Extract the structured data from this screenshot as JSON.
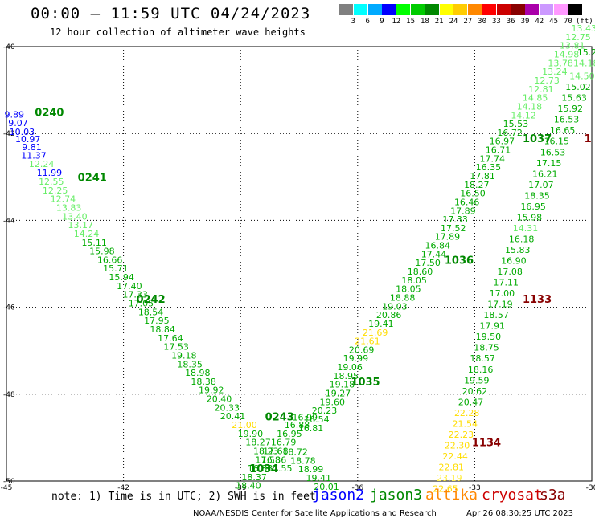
{
  "header": {
    "title": "00:00 – 11:59 UTC 04/24/2023",
    "subtitle": "12 hour collection of altimeter wave heights"
  },
  "color_scale": {
    "labels": [
      "3",
      "6",
      "9",
      "12",
      "15",
      "18",
      "21",
      "24",
      "27",
      "30",
      "33",
      "36",
      "39",
      "42",
      "45",
      "70"
    ],
    "unit": "(ft)",
    "colors": [
      "#808080",
      "#00ffff",
      "#00aaff",
      "#0000ff",
      "#00ff00",
      "#00cc00",
      "#008800",
      "#ffff00",
      "#ffcc00",
      "#ff8800",
      "#ff0000",
      "#cc0000",
      "#880000",
      "#aa00aa",
      "#cc99ff",
      "#ff99ff",
      "#000000"
    ]
  },
  "footer": {
    "note": "note:  1) Time is in UTC; 2) SWH is in feet",
    "satellites": [
      {
        "name": "jason2",
        "color": "#0000ff"
      },
      {
        "name": "jason3",
        "color": "#008800"
      },
      {
        "name": "altika",
        "color": "#ff8800"
      },
      {
        "name": "cryosat",
        "color": "#cc0000"
      },
      {
        "name": "s3a",
        "color": "#880000"
      }
    ],
    "credit": "NOAA/NESDIS Center for Satellite Applications and Research",
    "timestamp": "Apr 26 08:30:25 UTC 2023"
  },
  "chart_data": {
    "type": "scatter",
    "x_ticks": [
      "-45",
      "-42",
      "-39",
      "-36",
      "-33",
      "-30"
    ],
    "y_ticks": [
      "-40",
      "-42",
      "-44",
      "-46",
      "-48",
      "-50"
    ],
    "xlim": [
      -45,
      -30
    ],
    "ylim": [
      -50,
      -40
    ],
    "grid": true,
    "track_labels": [
      {
        "text": "0240",
        "x": -43.9,
        "y": -41.6,
        "color": "#008800"
      },
      {
        "text": "0241",
        "x": -42.8,
        "y": -43.1,
        "color": "#008800"
      },
      {
        "text": "0242",
        "x": -41.3,
        "y": -45.9,
        "color": "#008800"
      },
      {
        "text": "0243",
        "x": -38.0,
        "y": -48.6,
        "color": "#008800"
      },
      {
        "text": "1034",
        "x": -38.4,
        "y": -49.8,
        "color": "#008800"
      },
      {
        "text": "1035",
        "x": -35.8,
        "y": -47.8,
        "color": "#008800"
      },
      {
        "text": "1036",
        "x": -33.4,
        "y": -45.0,
        "color": "#008800"
      },
      {
        "text": "1037",
        "x": -31.4,
        "y": -42.2,
        "color": "#008800"
      },
      {
        "text": "1133",
        "x": -31.4,
        "y": -45.9,
        "color": "#880000"
      },
      {
        "text": "1134",
        "x": -32.7,
        "y": -49.2,
        "color": "#880000"
      },
      {
        "text": "1",
        "x": -30.1,
        "y": -42.2,
        "color": "#880000"
      }
    ],
    "series": [
      {
        "name": "0240-0241-0242",
        "points": [
          {
            "x": -44.8,
            "y": -41.64,
            "v": "9.89"
          },
          {
            "x": -44.7,
            "y": -41.83,
            "v": "9.07"
          },
          {
            "x": -44.6,
            "y": -42.03,
            "v": "10.03"
          },
          {
            "x": -44.45,
            "y": -42.2,
            "v": "10.97"
          },
          {
            "x": -44.35,
            "y": -42.38,
            "v": "9.81"
          },
          {
            "x": -44.3,
            "y": -42.58,
            "v": "11.37"
          },
          {
            "x": -44.1,
            "y": -42.77,
            "v": "12.24"
          },
          {
            "x": -43.9,
            "y": -42.98,
            "v": "11.99"
          },
          {
            "x": -43.85,
            "y": -43.18,
            "v": "12.55"
          },
          {
            "x": -43.75,
            "y": -43.38,
            "v": "12.25"
          },
          {
            "x": -43.55,
            "y": -43.58,
            "v": "12.74"
          },
          {
            "x": -43.4,
            "y": -43.78,
            "v": "13.83"
          },
          {
            "x": -43.25,
            "y": -43.98,
            "v": "13.40"
          },
          {
            "x": -43.1,
            "y": -44.18,
            "v": "13.17"
          },
          {
            "x": -42.95,
            "y": -44.38,
            "v": "14.24"
          },
          {
            "x": -42.75,
            "y": -44.58,
            "v": "15.11"
          },
          {
            "x": -42.55,
            "y": -44.78,
            "v": "15.98"
          },
          {
            "x": -42.35,
            "y": -44.98,
            "v": "16.66"
          },
          {
            "x": -42.2,
            "y": -45.18,
            "v": "15.71"
          },
          {
            "x": -42.05,
            "y": -45.38,
            "v": "15.94"
          },
          {
            "x": -41.85,
            "y": -45.58,
            "v": "17.40"
          },
          {
            "x": -41.7,
            "y": -45.78,
            "v": "17.33"
          },
          {
            "x": -41.55,
            "y": -45.98,
            "v": "17.05"
          },
          {
            "x": -41.3,
            "y": -46.18,
            "v": "18.54"
          },
          {
            "x": -41.15,
            "y": -46.38,
            "v": "17.95"
          },
          {
            "x": -41.0,
            "y": -46.58,
            "v": "18.84"
          },
          {
            "x": -40.8,
            "y": -46.78,
            "v": "17.64"
          },
          {
            "x": -40.65,
            "y": -46.98,
            "v": "17.53"
          },
          {
            "x": -40.45,
            "y": -47.18,
            "v": "19.18"
          },
          {
            "x": -40.3,
            "y": -47.38,
            "v": "18.35"
          },
          {
            "x": -40.1,
            "y": -47.58,
            "v": "18.98"
          },
          {
            "x": -39.95,
            "y": -47.78,
            "v": "18.38"
          },
          {
            "x": -39.75,
            "y": -47.98,
            "v": "19.92"
          },
          {
            "x": -39.55,
            "y": -48.18,
            "v": "20.40"
          },
          {
            "x": -39.35,
            "y": -48.38,
            "v": "20.33"
          },
          {
            "x": -39.2,
            "y": -48.58,
            "v": "20.41"
          },
          {
            "x": -38.9,
            "y": -48.78,
            "v": "21.00"
          },
          {
            "x": -38.75,
            "y": -48.98,
            "v": "19.90"
          },
          {
            "x": -38.55,
            "y": -49.18,
            "v": "18.27"
          },
          {
            "x": -38.35,
            "y": -49.38,
            "v": "18.23"
          },
          {
            "x": -38.15,
            "y": -49.58,
            "v": "16.36"
          },
          {
            "x": -38.0,
            "y": -49.78,
            "v": "17.55"
          }
        ]
      },
      {
        "name": "0243-1034",
        "points": [
          {
            "x": -37.35,
            "y": -48.6,
            "v": "16.99"
          },
          {
            "x": -37.55,
            "y": -48.78,
            "v": "16.88"
          },
          {
            "x": -37.75,
            "y": -48.98,
            "v": "16.95"
          },
          {
            "x": -37.9,
            "y": -49.18,
            "v": "16.79"
          },
          {
            "x": -38.1,
            "y": -49.38,
            "v": "17.68"
          },
          {
            "x": -38.3,
            "y": -49.58,
            "v": "17.58"
          },
          {
            "x": -38.5,
            "y": -49.78,
            "v": "16.88"
          },
          {
            "x": -38.65,
            "y": -49.98,
            "v": "18.37"
          },
          {
            "x": -38.8,
            "y": -50.18,
            "v": "18.40"
          },
          {
            "x": -37.6,
            "y": -49.4,
            "v": "18.72"
          },
          {
            "x": -37.4,
            "y": -49.6,
            "v": "18.78"
          },
          {
            "x": -37.2,
            "y": -49.8,
            "v": "18.99"
          },
          {
            "x": -37.0,
            "y": -50.0,
            "v": "19.41"
          },
          {
            "x": -36.8,
            "y": -50.2,
            "v": "20.01"
          }
        ]
      },
      {
        "name": "1035-1036",
        "points": [
          {
            "x": -37.2,
            "y": -48.85,
            "v": "16.81"
          },
          {
            "x": -37.05,
            "y": -48.65,
            "v": "16.54"
          },
          {
            "x": -36.85,
            "y": -48.45,
            "v": "20.23"
          },
          {
            "x": -36.65,
            "y": -48.25,
            "v": "19.60"
          },
          {
            "x": -36.5,
            "y": -48.05,
            "v": "19.27"
          },
          {
            "x": -36.4,
            "y": -47.85,
            "v": "19.18"
          },
          {
            "x": -36.3,
            "y": -47.65,
            "v": "18.95"
          },
          {
            "x": -36.2,
            "y": -47.45,
            "v": "19.06"
          },
          {
            "x": -36.05,
            "y": -47.25,
            "v": "19.99"
          },
          {
            "x": -35.9,
            "y": -47.05,
            "v": "20.69"
          },
          {
            "x": -35.75,
            "y": -46.85,
            "v": "21.61"
          },
          {
            "x": -35.55,
            "y": -46.65,
            "v": "21.69"
          },
          {
            "x": -35.4,
            "y": -46.45,
            "v": "19.41"
          },
          {
            "x": -35.2,
            "y": -46.25,
            "v": "20.86"
          },
          {
            "x": -35.05,
            "y": -46.05,
            "v": "19.03"
          },
          {
            "x": -34.85,
            "y": -45.85,
            "v": "18.88"
          },
          {
            "x": -34.7,
            "y": -45.65,
            "v": "18.05"
          },
          {
            "x": -34.55,
            "y": -45.45,
            "v": "18.05"
          },
          {
            "x": -34.4,
            "y": -45.25,
            "v": "18.60"
          },
          {
            "x": -34.2,
            "y": -45.05,
            "v": "17.50"
          },
          {
            "x": -34.05,
            "y": -44.85,
            "v": "17.44"
          },
          {
            "x": -33.95,
            "y": -44.65,
            "v": "16.84"
          },
          {
            "x": -33.7,
            "y": -44.45,
            "v": "17.89"
          },
          {
            "x": -33.55,
            "y": -44.25,
            "v": "17.52"
          },
          {
            "x": -33.5,
            "y": -44.05,
            "v": "17.33"
          },
          {
            "x": -33.3,
            "y": -43.85,
            "v": "17.89"
          },
          {
            "x": -33.2,
            "y": -43.65,
            "v": "16.46"
          },
          {
            "x": -33.05,
            "y": -43.45,
            "v": "16.50"
          },
          {
            "x": -32.95,
            "y": -43.25,
            "v": "18.27"
          },
          {
            "x": -32.8,
            "y": -43.05,
            "v": "17.81"
          },
          {
            "x": -32.65,
            "y": -42.85,
            "v": "16.35"
          },
          {
            "x": -32.55,
            "y": -42.65,
            "v": "17.74"
          },
          {
            "x": -32.4,
            "y": -42.45,
            "v": "16.71"
          },
          {
            "x": -32.3,
            "y": -42.25,
            "v": "16.97"
          },
          {
            "x": -32.1,
            "y": -42.05,
            "v": "16.72"
          },
          {
            "x": -31.95,
            "y": -41.85,
            "v": "15.53"
          },
          {
            "x": -31.75,
            "y": -41.65,
            "v": "14.12"
          },
          {
            "x": -31.6,
            "y": -41.45,
            "v": "14.18"
          },
          {
            "x": -31.45,
            "y": -41.25,
            "v": "14.85"
          },
          {
            "x": -31.3,
            "y": -41.05,
            "v": "12.81"
          },
          {
            "x": -31.15,
            "y": -40.85,
            "v": "12.73"
          },
          {
            "x": -30.95,
            "y": -40.65,
            "v": "13.24"
          },
          {
            "x": -30.8,
            "y": -40.45,
            "v": "13.78"
          },
          {
            "x": -30.65,
            "y": -40.25,
            "v": "14.98"
          },
          {
            "x": -30.5,
            "y": -40.05,
            "v": "13.81"
          },
          {
            "x": -30.35,
            "y": -39.85,
            "v": "12.75"
          },
          {
            "x": -30.2,
            "y": -39.65,
            "v": "13.43"
          }
        ]
      },
      {
        "name": "1133-1134",
        "points": [
          {
            "x": -30.05,
            "y": -40.2,
            "v": "15.20"
          },
          {
            "x": -30.15,
            "y": -40.45,
            "v": "14.18"
          },
          {
            "x": -30.25,
            "y": -40.75,
            "v": "14.50"
          },
          {
            "x": -30.35,
            "y": -41.0,
            "v": "15.02"
          },
          {
            "x": -30.45,
            "y": -41.25,
            "v": "15.63"
          },
          {
            "x": -30.55,
            "y": -41.5,
            "v": "15.92"
          },
          {
            "x": -30.65,
            "y": -41.75,
            "v": "16.53"
          },
          {
            "x": -30.75,
            "y": -42.0,
            "v": "16.65"
          },
          {
            "x": -30.9,
            "y": -42.25,
            "v": "16.15"
          },
          {
            "x": -31.0,
            "y": -42.5,
            "v": "16.53"
          },
          {
            "x": -31.1,
            "y": -42.75,
            "v": "17.15"
          },
          {
            "x": -31.2,
            "y": -43.0,
            "v": "16.21"
          },
          {
            "x": -31.3,
            "y": -43.25,
            "v": "17.07"
          },
          {
            "x": -31.4,
            "y": -43.5,
            "v": "18.35"
          },
          {
            "x": -31.5,
            "y": -43.75,
            "v": "16.95"
          },
          {
            "x": -31.6,
            "y": -44.0,
            "v": "15.98"
          },
          {
            "x": -31.7,
            "y": -44.25,
            "v": "14.31"
          },
          {
            "x": -31.8,
            "y": -44.5,
            "v": "16.18"
          },
          {
            "x": -31.9,
            "y": -44.75,
            "v": "15.83"
          },
          {
            "x": -32.0,
            "y": -45.0,
            "v": "16.90"
          },
          {
            "x": -32.1,
            "y": -45.25,
            "v": "17.08"
          },
          {
            "x": -32.2,
            "y": -45.5,
            "v": "17.11"
          },
          {
            "x": -32.3,
            "y": -45.75,
            "v": "17.00"
          },
          {
            "x": -32.35,
            "y": -46.0,
            "v": "17.19"
          },
          {
            "x": -32.45,
            "y": -46.25,
            "v": "18.57"
          },
          {
            "x": -32.55,
            "y": -46.5,
            "v": "17.91"
          },
          {
            "x": -32.65,
            "y": -46.75,
            "v": "19.50"
          },
          {
            "x": -32.7,
            "y": -47.0,
            "v": "18.75"
          },
          {
            "x": -32.8,
            "y": -47.25,
            "v": "18.57"
          },
          {
            "x": -32.85,
            "y": -47.5,
            "v": "18.16"
          },
          {
            "x": -32.95,
            "y": -47.75,
            "v": "19.59"
          },
          {
            "x": -33.0,
            "y": -48.0,
            "v": "20.62"
          },
          {
            "x": -33.1,
            "y": -48.25,
            "v": "20.47"
          },
          {
            "x": -33.2,
            "y": -48.5,
            "v": "22.28"
          },
          {
            "x": -33.25,
            "y": -48.75,
            "v": "21.54"
          },
          {
            "x": -33.35,
            "y": -49.0,
            "v": "22.23"
          },
          {
            "x": -33.45,
            "y": -49.25,
            "v": "22.30"
          },
          {
            "x": -33.5,
            "y": -49.5,
            "v": "22.44"
          },
          {
            "x": -33.6,
            "y": -49.75,
            "v": "22.81"
          },
          {
            "x": -33.65,
            "y": -50.0,
            "v": "23.19"
          },
          {
            "x": -33.75,
            "y": -50.25,
            "v": "22.65"
          }
        ]
      }
    ]
  }
}
